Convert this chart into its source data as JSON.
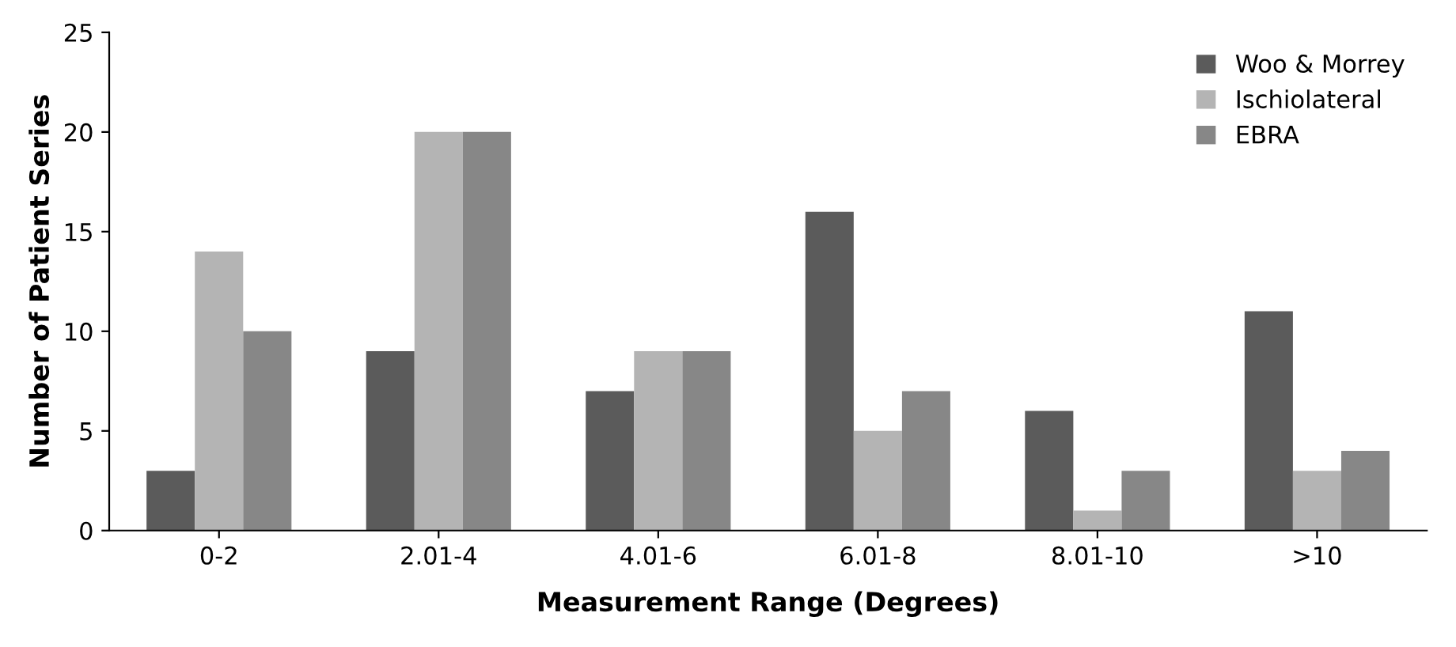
{
  "chart_data": {
    "type": "bar",
    "xlabel": "Measurement Range (Degrees)",
    "ylabel": "Number of Patient Series",
    "categories": [
      "0-2",
      "2.01-4",
      "4.01-6",
      "6.01-8",
      "8.01-10",
      ">10"
    ],
    "series": [
      {
        "name": "Woo & Morrey",
        "color": "#5b5b5b",
        "values": [
          3,
          9,
          7,
          16,
          6,
          11
        ]
      },
      {
        "name": "Ischiolateral",
        "color": "#b4b4b4",
        "values": [
          14,
          20,
          9,
          5,
          1,
          3
        ]
      },
      {
        "name": "EBRA",
        "color": "#878787",
        "values": [
          10,
          20,
          9,
          7,
          3,
          4
        ]
      }
    ],
    "ylim": [
      0,
      25
    ],
    "yticks": [
      0,
      5,
      10,
      15,
      20,
      25
    ],
    "grid": false,
    "legend": "top right"
  }
}
